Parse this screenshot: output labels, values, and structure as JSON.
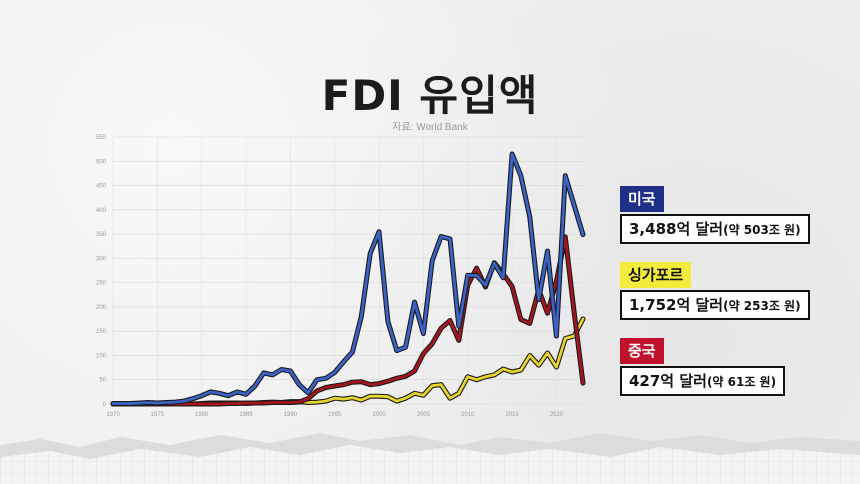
{
  "header": {
    "title": "FDI 유입액",
    "source": "자료: World Bank"
  },
  "callouts": [
    {
      "country": "미국",
      "value": "3,488억 달러",
      "sub": "(약 503조 원)",
      "tag_bg": "#1f2f86",
      "tag_color": "#ffffff"
    },
    {
      "country": "싱가포르",
      "value": "1,752억 달러",
      "sub": "(약 253조 원)",
      "tag_bg": "#f4ec3c",
      "tag_color": "#111111"
    },
    {
      "country": "중국",
      "value": "427억 달러",
      "sub": "(약 61조 원)",
      "tag_bg": "#c0122d",
      "tag_color": "#ffffff"
    }
  ],
  "chart_data": {
    "type": "line",
    "title": "FDI 유입액",
    "subtitle": "자료: World Bank",
    "xlabel": "",
    "ylabel": "",
    "xlim": [
      1970,
      2023
    ],
    "ylim": [
      0,
      550
    ],
    "x_ticks": [
      1970,
      1975,
      1980,
      1985,
      1990,
      1995,
      2000,
      2005,
      2010,
      2015,
      2020
    ],
    "y_ticks": [
      0,
      50,
      100,
      150,
      200,
      250,
      300,
      350,
      400,
      450,
      500,
      550
    ],
    "grid": true,
    "legend": "right",
    "x": [
      1970,
      1971,
      1972,
      1973,
      1974,
      1975,
      1976,
      1977,
      1978,
      1979,
      1980,
      1981,
      1982,
      1983,
      1984,
      1985,
      1986,
      1987,
      1988,
      1989,
      1990,
      1991,
      1992,
      1993,
      1994,
      1995,
      1996,
      1997,
      1998,
      1999,
      2000,
      2001,
      2002,
      2003,
      2004,
      2005,
      2006,
      2007,
      2008,
      2009,
      2010,
      2011,
      2012,
      2013,
      2014,
      2015,
      2016,
      2017,
      2018,
      2019,
      2020,
      2021,
      2022,
      2023
    ],
    "series": [
      {
        "name": "미국",
        "color": "#3a63c8",
        "values": [
          1,
          1,
          1,
          2,
          3,
          2,
          3,
          4,
          6,
          11,
          17,
          25,
          22,
          17,
          25,
          20,
          37,
          64,
          60,
          71,
          68,
          40,
          23,
          50,
          53,
          65,
          87,
          107,
          180,
          310,
          355,
          170,
          110,
          117,
          210,
          145,
          295,
          345,
          340,
          160,
          265,
          265,
          245,
          290,
          260,
          515,
          470,
          385,
          215,
          315,
          140,
          470,
          410,
          349
        ]
      },
      {
        "name": "싱가포르",
        "color": "#e6d52e",
        "values": [
          0,
          0,
          0,
          0,
          0,
          0,
          0,
          0,
          0,
          0,
          1,
          2,
          2,
          2,
          2,
          1,
          2,
          3,
          4,
          3,
          5,
          5,
          3,
          4,
          6,
          12,
          10,
          13,
          8,
          16,
          16,
          15,
          6,
          12,
          22,
          18,
          38,
          40,
          12,
          22,
          56,
          50,
          56,
          60,
          72,
          66,
          70,
          100,
          80,
          105,
          76,
          135,
          140,
          175
        ]
      },
      {
        "name": "중국",
        "color": "#a3161f",
        "values": [
          0,
          0,
          0,
          0,
          0,
          0,
          0,
          0,
          0,
          0,
          0,
          0,
          0,
          1,
          1,
          2,
          2,
          2,
          3,
          3,
          3,
          4,
          11,
          27,
          34,
          37,
          40,
          45,
          46,
          40,
          42,
          47,
          53,
          57,
          68,
          104,
          124,
          156,
          172,
          131,
          245,
          280,
          241,
          291,
          268,
          242,
          174,
          166,
          235,
          187,
          253,
          344,
          190,
          43
        ]
      }
    ]
  }
}
